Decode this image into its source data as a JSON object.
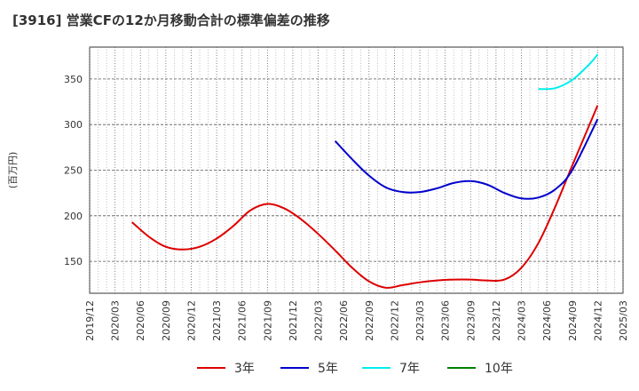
{
  "chart_data": {
    "type": "line",
    "title": "[3916]  営業CFの12か月移動合計の標準偏差の推移",
    "xlabel": "",
    "ylabel": "(百万円)",
    "x_ticks": [
      "2019/12",
      "2020/03",
      "2020/06",
      "2020/09",
      "2020/12",
      "2021/03",
      "2021/06",
      "2021/09",
      "2021/12",
      "2022/03",
      "2022/06",
      "2022/09",
      "2022/12",
      "2023/03",
      "2023/06",
      "2023/09",
      "2023/12",
      "2024/03",
      "2024/06",
      "2024/09",
      "2024/12",
      "2025/03"
    ],
    "y_ticks": [
      150,
      200,
      250,
      300,
      350
    ],
    "ylim": [
      115,
      385
    ],
    "grid": true,
    "legend_position": "bottom",
    "series": [
      {
        "name": "3年",
        "color": "#dd0000",
        "x": [
          "2020/05",
          "2020/07",
          "2020/09",
          "2020/11",
          "2021/01",
          "2021/03",
          "2021/05",
          "2021/07",
          "2021/09",
          "2021/11",
          "2022/01",
          "2022/03",
          "2022/05",
          "2022/07",
          "2022/09",
          "2022/11",
          "2023/01",
          "2023/03",
          "2023/05",
          "2023/07",
          "2023/09",
          "2023/11",
          "2024/01",
          "2024/03",
          "2024/05",
          "2024/07",
          "2024/09",
          "2024/12"
        ],
        "values": [
          193,
          177,
          166,
          163,
          166,
          175,
          189,
          206,
          213,
          208,
          196,
          180,
          162,
          143,
          128,
          121,
          124,
          127,
          129,
          130,
          130,
          129,
          130,
          143,
          170,
          210,
          255,
          321
        ]
      },
      {
        "name": "5年",
        "color": "#0000cc",
        "x": [
          "2022/05",
          "2022/07",
          "2022/09",
          "2022/11",
          "2023/01",
          "2023/03",
          "2023/05",
          "2023/07",
          "2023/09",
          "2023/11",
          "2024/01",
          "2024/03",
          "2024/05",
          "2024/07",
          "2024/09",
          "2024/12"
        ],
        "values": [
          282,
          262,
          244,
          231,
          226,
          226,
          230,
          236,
          238,
          234,
          225,
          219,
          220,
          229,
          250,
          306
        ]
      },
      {
        "name": "7年",
        "color": "#00eeee",
        "x": [
          "2024/05",
          "2024/07",
          "2024/09",
          "2024/11",
          "2024/12"
        ],
        "values": [
          339,
          340,
          349,
          366,
          377
        ]
      },
      {
        "name": "10年",
        "color": "#008000",
        "x": [],
        "values": []
      }
    ]
  }
}
